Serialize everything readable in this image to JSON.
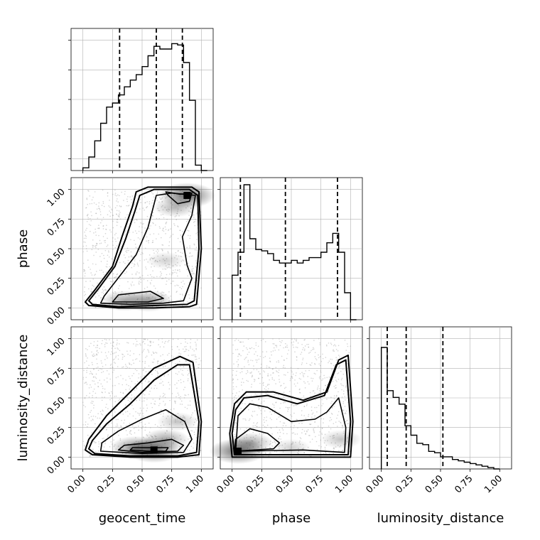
{
  "chart_data": {
    "type": "corner",
    "parameters": [
      "geocent_time",
      "phase",
      "luminosity_distance"
    ],
    "axis_labels": {
      "x": [
        "geocent_time",
        "phase",
        "luminosity_distance"
      ],
      "y": [
        "phase",
        "luminosity_distance"
      ]
    },
    "tick_values": [
      0.0,
      0.25,
      0.5,
      0.75,
      1.0
    ],
    "tick_labels": [
      "0.00",
      "0.25",
      "0.50",
      "0.75",
      "1.00"
    ],
    "ranges": {
      "geocent_time": [
        -0.1,
        1.1
      ],
      "phase": [
        -0.1,
        1.1
      ],
      "luminosity_distance": [
        -0.1,
        1.1
      ]
    },
    "grid": true,
    "colors": {
      "contour": "#000000",
      "points": "#a0a0a0",
      "hist": "#000000",
      "grid": "#b0b0b0"
    },
    "histograms": [
      {
        "parameter": "geocent_time",
        "bin_edges": [
          0.0,
          0.05,
          0.1,
          0.15,
          0.2,
          0.25,
          0.3,
          0.35,
          0.4,
          0.45,
          0.5,
          0.55,
          0.6,
          0.65,
          0.7,
          0.75,
          0.8,
          0.85,
          0.9,
          0.95,
          1.0,
          1.05
        ],
        "counts": [
          0.02,
          0.1,
          0.22,
          0.35,
          0.47,
          0.5,
          0.56,
          0.62,
          0.67,
          0.71,
          0.77,
          0.85,
          0.92,
          0.9,
          0.9,
          0.94,
          0.93,
          0.8,
          0.52,
          0.04,
          0.0
        ],
        "quantiles": [
          0.31,
          0.62,
          0.84
        ]
      },
      {
        "parameter": "phase",
        "bin_edges": [
          0.0,
          0.05,
          0.1,
          0.15,
          0.2,
          0.25,
          0.3,
          0.35,
          0.4,
          0.45,
          0.5,
          0.55,
          0.6,
          0.65,
          0.7,
          0.75,
          0.8,
          0.85,
          0.9,
          0.95,
          1.0,
          1.05
        ],
        "counts": [
          0.33,
          0.5,
          1.0,
          0.6,
          0.52,
          0.51,
          0.49,
          0.44,
          0.42,
          0.42,
          0.44,
          0.42,
          0.44,
          0.46,
          0.46,
          0.5,
          0.57,
          0.64,
          0.5,
          0.2,
          0.0
        ],
        "quantiles": [
          0.07,
          0.45,
          0.89
        ]
      },
      {
        "parameter": "luminosity_distance",
        "bin_edges": [
          0.0,
          0.05,
          0.1,
          0.15,
          0.2,
          0.25,
          0.3,
          0.35,
          0.4,
          0.45,
          0.5,
          0.55,
          0.6,
          0.65,
          0.7,
          0.75,
          0.8,
          0.85,
          0.9,
          0.95,
          1.0
        ],
        "counts": [
          0.9,
          0.58,
          0.53,
          0.48,
          0.32,
          0.25,
          0.19,
          0.18,
          0.13,
          0.12,
          0.09,
          0.09,
          0.07,
          0.06,
          0.05,
          0.04,
          0.03,
          0.02,
          0.01,
          0.0
        ],
        "quantiles": [
          0.05,
          0.21,
          0.52
        ]
      }
    ],
    "panels_2d": [
      {
        "x": "geocent_time",
        "y": "phase",
        "contours": [
          [
            [
              0.05,
              0.02
            ],
            [
              0.3,
              0.0
            ],
            [
              0.6,
              0.0
            ],
            [
              0.9,
              0.01
            ],
            [
              0.96,
              0.03
            ],
            [
              1.0,
              0.5
            ],
            [
              0.98,
              0.98
            ],
            [
              0.92,
              1.02
            ],
            [
              0.55,
              1.02
            ],
            [
              0.45,
              0.98
            ],
            [
              0.42,
              0.86
            ],
            [
              0.33,
              0.6
            ],
            [
              0.25,
              0.35
            ],
            [
              0.1,
              0.15
            ],
            [
              0.02,
              0.05
            ]
          ],
          [
            [
              0.08,
              0.03
            ],
            [
              0.3,
              0.01
            ],
            [
              0.6,
              0.02
            ],
            [
              0.88,
              0.03
            ],
            [
              0.94,
              0.06
            ],
            [
              0.98,
              0.5
            ],
            [
              0.97,
              0.95
            ],
            [
              0.9,
              1.0
            ],
            [
              0.6,
              1.0
            ],
            [
              0.48,
              0.95
            ],
            [
              0.44,
              0.82
            ],
            [
              0.36,
              0.58
            ],
            [
              0.27,
              0.35
            ],
            [
              0.13,
              0.16
            ],
            [
              0.05,
              0.06
            ]
          ],
          [
            [
              0.15,
              0.04
            ],
            [
              0.4,
              0.03
            ],
            [
              0.68,
              0.04
            ],
            [
              0.85,
              0.06
            ],
            [
              0.92,
              0.25
            ],
            [
              0.88,
              0.36
            ],
            [
              0.84,
              0.6
            ],
            [
              0.92,
              0.78
            ],
            [
              0.95,
              0.95
            ],
            [
              0.75,
              0.97
            ],
            [
              0.62,
              0.95
            ],
            [
              0.55,
              0.68
            ],
            [
              0.45,
              0.45
            ],
            [
              0.32,
              0.28
            ],
            [
              0.18,
              0.1
            ]
          ],
          [
            [
              0.25,
              0.05
            ],
            [
              0.55,
              0.05
            ],
            [
              0.68,
              0.08
            ],
            [
              0.57,
              0.14
            ],
            [
              0.3,
              0.11
            ]
          ],
          [
            [
              0.7,
              0.98
            ],
            [
              0.82,
              0.96
            ],
            [
              0.92,
              0.97
            ],
            [
              0.9,
              0.9
            ],
            [
              0.8,
              0.88
            ],
            [
              0.72,
              0.95
            ]
          ]
        ],
        "density_peaks": [
          [
            0.88,
            0.95,
            1.0
          ],
          [
            0.55,
            0.06,
            0.7
          ],
          [
            0.35,
            0.06,
            0.6
          ],
          [
            0.78,
            0.85,
            0.5
          ],
          [
            0.7,
            0.4,
            0.3
          ]
        ]
      },
      {
        "x": "geocent_time",
        "y": "luminosity_distance",
        "contours": [
          [
            [
              0.02,
              0.06
            ],
            [
              0.08,
              0.02
            ],
            [
              0.4,
              0.0
            ],
            [
              0.8,
              0.0
            ],
            [
              0.98,
              0.02
            ],
            [
              1.0,
              0.3
            ],
            [
              0.93,
              0.8
            ],
            [
              0.82,
              0.85
            ],
            [
              0.6,
              0.75
            ],
            [
              0.4,
              0.55
            ],
            [
              0.2,
              0.35
            ],
            [
              0.05,
              0.15
            ]
          ],
          [
            [
              0.05,
              0.07
            ],
            [
              0.1,
              0.03
            ],
            [
              0.4,
              0.01
            ],
            [
              0.8,
              0.01
            ],
            [
              0.96,
              0.04
            ],
            [
              0.98,
              0.3
            ],
            [
              0.9,
              0.78
            ],
            [
              0.8,
              0.78
            ],
            [
              0.6,
              0.65
            ],
            [
              0.4,
              0.45
            ],
            [
              0.2,
              0.28
            ],
            [
              0.08,
              0.14
            ]
          ],
          [
            [
              0.15,
              0.05
            ],
            [
              0.5,
              0.03
            ],
            [
              0.85,
              0.04
            ],
            [
              0.92,
              0.15
            ],
            [
              0.86,
              0.3
            ],
            [
              0.7,
              0.4
            ],
            [
              0.5,
              0.32
            ],
            [
              0.3,
              0.22
            ],
            [
              0.16,
              0.12
            ]
          ],
          [
            [
              0.3,
              0.06
            ],
            [
              0.5,
              0.04
            ],
            [
              0.8,
              0.05
            ],
            [
              0.85,
              0.1
            ],
            [
              0.75,
              0.15
            ],
            [
              0.55,
              0.12
            ],
            [
              0.35,
              0.1
            ]
          ],
          [
            [
              0.4,
              0.06
            ],
            [
              0.55,
              0.05
            ],
            [
              0.7,
              0.05
            ],
            [
              0.72,
              0.08
            ],
            [
              0.6,
              0.08
            ],
            [
              0.42,
              0.08
            ]
          ]
        ],
        "density_peaks": [
          [
            0.6,
            0.06,
            1.0
          ],
          [
            0.45,
            0.08,
            0.8
          ],
          [
            0.7,
            0.15,
            0.6
          ],
          [
            0.8,
            0.3,
            0.4
          ]
        ]
      },
      {
        "x": "phase",
        "y": "luminosity_distance",
        "contours": [
          [
            [
              0.0,
              0.0
            ],
            [
              0.5,
              0.0
            ],
            [
              1.0,
              0.0
            ],
            [
              1.02,
              0.3
            ],
            [
              0.98,
              0.86
            ],
            [
              0.9,
              0.82
            ],
            [
              0.8,
              0.55
            ],
            [
              0.6,
              0.48
            ],
            [
              0.35,
              0.55
            ],
            [
              0.12,
              0.55
            ],
            [
              0.02,
              0.45
            ],
            [
              -0.02,
              0.2
            ]
          ],
          [
            [
              0.02,
              0.02
            ],
            [
              0.5,
              0.02
            ],
            [
              0.98,
              0.02
            ],
            [
              1.0,
              0.3
            ],
            [
              0.96,
              0.82
            ],
            [
              0.88,
              0.78
            ],
            [
              0.78,
              0.52
            ],
            [
              0.55,
              0.45
            ],
            [
              0.3,
              0.52
            ],
            [
              0.1,
              0.5
            ],
            [
              0.03,
              0.4
            ],
            [
              0.0,
              0.2
            ]
          ],
          [
            [
              0.03,
              0.05
            ],
            [
              0.6,
              0.06
            ],
            [
              0.95,
              0.04
            ],
            [
              0.96,
              0.25
            ],
            [
              0.9,
              0.5
            ],
            [
              0.8,
              0.38
            ],
            [
              0.7,
              0.32
            ],
            [
              0.5,
              0.3
            ],
            [
              0.3,
              0.42
            ],
            [
              0.15,
              0.45
            ],
            [
              0.05,
              0.35
            ]
          ],
          [
            [
              0.02,
              0.05
            ],
            [
              0.35,
              0.07
            ],
            [
              0.4,
              0.12
            ],
            [
              0.3,
              0.2
            ],
            [
              0.15,
              0.24
            ],
            [
              0.03,
              0.15
            ]
          ]
        ],
        "density_peaks": [
          [
            0.05,
            0.05,
            1.0
          ],
          [
            0.15,
            0.12,
            0.6
          ],
          [
            0.92,
            0.15,
            0.4
          ],
          [
            0.5,
            0.08,
            0.3
          ]
        ]
      }
    ]
  }
}
